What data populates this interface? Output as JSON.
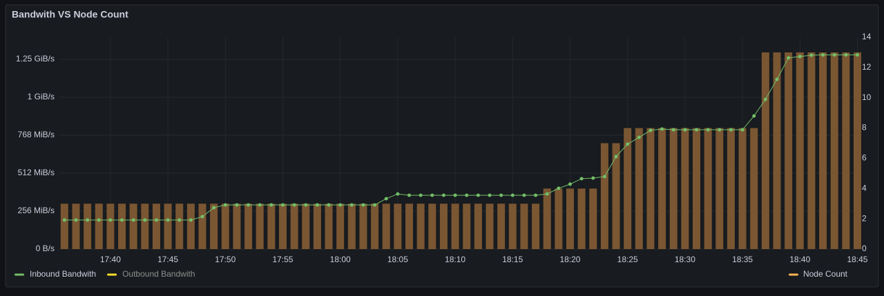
{
  "chart_data": {
    "type": "combo",
    "title": "Bandwith VS Node Count",
    "categories": [
      null,
      null,
      null,
      null,
      "17:40",
      null,
      null,
      null,
      null,
      "17:45",
      null,
      null,
      null,
      null,
      "17:50",
      null,
      null,
      null,
      null,
      "17:55",
      null,
      null,
      null,
      null,
      "18:00",
      null,
      null,
      null,
      null,
      "18:05",
      null,
      null,
      null,
      null,
      "18:10",
      null,
      null,
      null,
      null,
      "18:15",
      null,
      null,
      null,
      null,
      "18:20",
      null,
      null,
      null,
      null,
      "18:25",
      null,
      null,
      null,
      null,
      "18:30",
      null,
      null,
      null,
      null,
      "18:35",
      null,
      null,
      null,
      null,
      "18:40",
      null,
      null,
      null,
      null,
      "18:45"
    ],
    "ylim": [
      0,
      1429
    ],
    "yticks": [
      {
        "value": 0,
        "label": "0 B/s"
      },
      {
        "value": 256,
        "label": "256 MiB/s"
      },
      {
        "value": 512,
        "label": "512 MiB/s"
      },
      {
        "value": 768,
        "label": "768 MiB/s"
      },
      {
        "value": 1024,
        "label": "1 GiB/s"
      },
      {
        "value": 1280,
        "label": "1.25 GiB/s"
      }
    ],
    "y2lim": [
      0,
      14
    ],
    "y2ticks": [
      0,
      2,
      4,
      6,
      8,
      10,
      12,
      14
    ],
    "grid": true,
    "legend": "bottom",
    "series": [
      {
        "name": "Inbound Bandwith",
        "type": "line",
        "color": "#73bf69",
        "values": [
          196,
          196,
          196,
          196,
          196,
          196,
          196,
          196,
          196,
          196,
          196,
          196,
          219,
          279,
          298,
          298,
          298,
          298,
          298,
          298,
          298,
          298,
          298,
          298,
          298,
          298,
          298,
          298,
          340,
          372,
          363,
          363,
          363,
          363,
          363,
          363,
          363,
          363,
          363,
          363,
          363,
          363,
          372,
          410,
          438,
          475,
          479,
          489,
          624,
          708,
          754,
          801,
          810,
          805,
          805,
          805,
          805,
          805,
          805,
          805,
          898,
          1010,
          1145,
          1290,
          1299,
          1308,
          1310,
          1310,
          1310,
          1310
        ]
      },
      {
        "name": "Outbound Bandwith",
        "type": "line",
        "color": "#fade2a",
        "hidden": true
      },
      {
        "name": "Node Count",
        "type": "bar",
        "axis": "y2",
        "color": "#ffb357",
        "fill": "#7a5632",
        "values": [
          3,
          3,
          3,
          3,
          3,
          3,
          3,
          3,
          3,
          3,
          3,
          3,
          3,
          3,
          3,
          3,
          3,
          3,
          3,
          3,
          3,
          3,
          3,
          3,
          3,
          3,
          3,
          3,
          3,
          3,
          3,
          3,
          3,
          3,
          3,
          3,
          3,
          3,
          3,
          3,
          3,
          3,
          4,
          4,
          4,
          4,
          4,
          7,
          7,
          8,
          8,
          8,
          8,
          8,
          8,
          8,
          8,
          8,
          8,
          8,
          8,
          13,
          13,
          13,
          13,
          13,
          13,
          13,
          13,
          13
        ]
      }
    ]
  }
}
